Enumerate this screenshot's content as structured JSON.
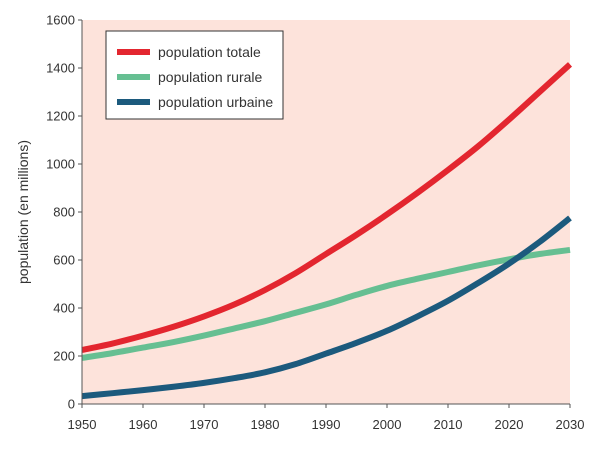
{
  "chart_data": {
    "type": "line",
    "title": "",
    "xlabel": "",
    "ylabel": "population (en millions)",
    "xlim": [
      1950,
      2030
    ],
    "ylim": [
      0,
      1600
    ],
    "x_ticks": [
      "1950",
      "1960",
      "1970",
      "1980",
      "1990",
      "2000",
      "2010",
      "2020",
      "2030"
    ],
    "y_ticks": [
      "0",
      "200",
      "400",
      "600",
      "800",
      "1000",
      "1200",
      "1400",
      "1600"
    ],
    "grid": false,
    "legend_position": "top-left",
    "plot_background": "#fde3db",
    "x": [
      1950,
      1955,
      1960,
      1965,
      1970,
      1975,
      1980,
      1985,
      1990,
      1995,
      2000,
      2005,
      2010,
      2015,
      2020,
      2025,
      2030
    ],
    "series": [
      {
        "name": "population totale",
        "color": "#e3262f",
        "values": [
          225,
          252,
          285,
          322,
          365,
          415,
          475,
          545,
          625,
          705,
          790,
          880,
          975,
          1075,
          1185,
          1300,
          1415
        ]
      },
      {
        "name": "population rurale",
        "color": "#66bf92",
        "values": [
          192,
          212,
          235,
          258,
          285,
          315,
          345,
          380,
          415,
          455,
          492,
          522,
          550,
          578,
          603,
          625,
          642
        ]
      },
      {
        "name": "population urbaine",
        "color": "#1c5a7d",
        "values": [
          33,
          45,
          58,
          72,
          88,
          108,
          132,
          166,
          210,
          255,
          305,
          365,
          430,
          505,
          585,
          675,
          775
        ]
      }
    ]
  }
}
